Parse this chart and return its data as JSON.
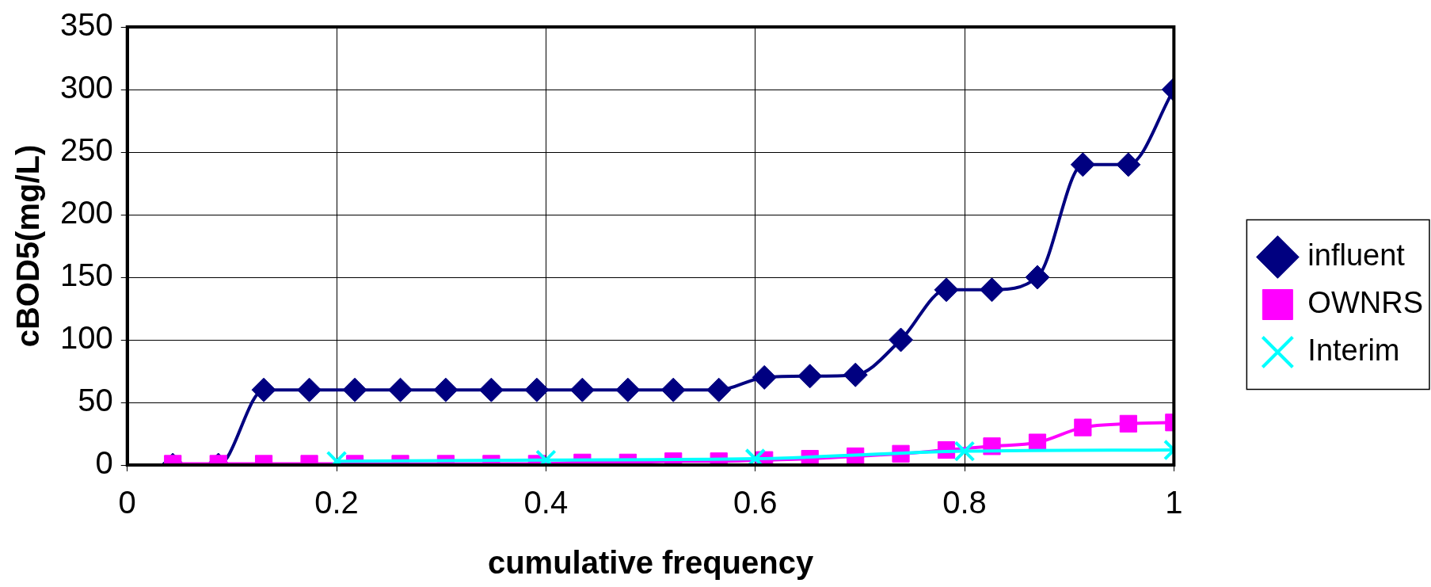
{
  "chart_data": {
    "type": "line",
    "xlabel": "cumulative frequency",
    "ylabel": "cBOD5(mg/L)",
    "xlim": [
      0,
      1
    ],
    "xticks": [
      0,
      0.2,
      0.4,
      0.6,
      0.8,
      1
    ],
    "ylim": [
      0,
      350
    ],
    "yticks": [
      0,
      50,
      100,
      150,
      200,
      250,
      300,
      350
    ],
    "grid": true,
    "legend": "right",
    "line_style": "solid",
    "series": [
      {
        "name": "influent",
        "color": "#000080",
        "marker": "diamond",
        "x": [
          0.0435,
          0.087,
          0.1304,
          0.1739,
          0.2174,
          0.2609,
          0.3043,
          0.3478,
          0.3913,
          0.4348,
          0.4783,
          0.5217,
          0.5652,
          0.6087,
          0.6522,
          0.6957,
          0.7391,
          0.7826,
          0.8261,
          0.8696,
          0.913,
          0.9565,
          1
        ],
        "values": [
          0,
          0,
          60,
          60,
          60,
          60,
          60,
          60,
          60,
          60,
          60,
          60,
          60,
          70,
          71,
          72,
          100,
          140,
          140,
          150,
          240,
          240,
          300
        ]
      },
      {
        "name": "OWNRS",
        "color": "#ff00ff",
        "marker": "square",
        "x": [
          0.0435,
          0.087,
          0.1304,
          0.1739,
          0.2174,
          0.2609,
          0.3043,
          0.3478,
          0.3913,
          0.4348,
          0.4783,
          0.5217,
          0.5652,
          0.6087,
          0.6522,
          0.6957,
          0.7391,
          0.7826,
          0.8261,
          0.8696,
          0.913,
          0.9565,
          1
        ],
        "values": [
          1,
          1,
          1,
          1,
          1,
          1,
          1,
          1,
          1,
          2,
          2,
          3,
          3,
          4,
          5,
          7,
          9,
          12,
          15,
          18,
          30,
          33,
          34
        ]
      },
      {
        "name": "Interim",
        "color": "#00ffff",
        "marker": "cross",
        "x": [
          0.2,
          0.4,
          0.6,
          0.8,
          1
        ],
        "values": [
          3,
          4,
          5,
          11,
          12
        ]
      }
    ]
  }
}
